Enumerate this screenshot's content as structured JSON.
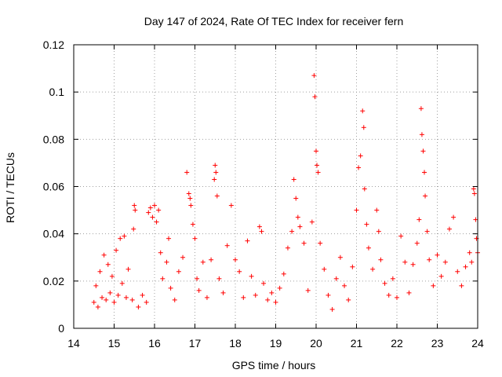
{
  "chart_data": {
    "type": "scatter",
    "title": "Day 147 of 2024, Rate Of TEC Index for receiver fern",
    "xlabel": "GPS time / hours",
    "ylabel": "ROTI / TECUs",
    "xlim": [
      14,
      24
    ],
    "ylim": [
      0,
      0.12
    ],
    "xticks": [
      14,
      15,
      16,
      17,
      18,
      19,
      20,
      21,
      22,
      23,
      24
    ],
    "yticks": [
      0,
      0.02,
      0.04,
      0.06,
      0.08,
      0.1,
      0.12
    ],
    "ytick_labels": [
      "0",
      "0.02",
      "0.04",
      "0.06",
      "0.08",
      "0.1",
      "0.12"
    ],
    "grid": true,
    "marker": "+",
    "color": "#ff0000",
    "series": [
      {
        "name": "ROTI",
        "points": [
          [
            14.5,
            0.011
          ],
          [
            14.55,
            0.018
          ],
          [
            14.6,
            0.009
          ],
          [
            14.65,
            0.024
          ],
          [
            14.7,
            0.013
          ],
          [
            14.75,
            0.031
          ],
          [
            14.8,
            0.012
          ],
          [
            14.85,
            0.027
          ],
          [
            14.9,
            0.015
          ],
          [
            14.95,
            0.022
          ],
          [
            15.0,
            0.011
          ],
          [
            15.05,
            0.033
          ],
          [
            15.1,
            0.014
          ],
          [
            15.15,
            0.038
          ],
          [
            15.2,
            0.019
          ],
          [
            15.25,
            0.039
          ],
          [
            15.3,
            0.013
          ],
          [
            15.35,
            0.025
          ],
          [
            15.45,
            0.012
          ],
          [
            15.5,
            0.052
          ],
          [
            15.52,
            0.05
          ],
          [
            15.48,
            0.042
          ],
          [
            15.6,
            0.009
          ],
          [
            15.7,
            0.014
          ],
          [
            15.8,
            0.011
          ],
          [
            15.85,
            0.049
          ],
          [
            15.9,
            0.051
          ],
          [
            15.95,
            0.047
          ],
          [
            16.0,
            0.052
          ],
          [
            16.05,
            0.045
          ],
          [
            16.1,
            0.05
          ],
          [
            16.15,
            0.032
          ],
          [
            16.2,
            0.021
          ],
          [
            16.3,
            0.028
          ],
          [
            16.35,
            0.038
          ],
          [
            16.4,
            0.017
          ],
          [
            16.5,
            0.012
          ],
          [
            16.6,
            0.024
          ],
          [
            16.7,
            0.03
          ],
          [
            16.8,
            0.066
          ],
          [
            16.85,
            0.057
          ],
          [
            16.88,
            0.055
          ],
          [
            16.9,
            0.052
          ],
          [
            16.95,
            0.044
          ],
          [
            17.0,
            0.038
          ],
          [
            17.05,
            0.021
          ],
          [
            17.1,
            0.016
          ],
          [
            17.2,
            0.028
          ],
          [
            17.3,
            0.013
          ],
          [
            17.4,
            0.029
          ],
          [
            17.5,
            0.069
          ],
          [
            17.52,
            0.066
          ],
          [
            17.48,
            0.063
          ],
          [
            17.55,
            0.056
          ],
          [
            17.6,
            0.021
          ],
          [
            17.7,
            0.015
          ],
          [
            17.8,
            0.035
          ],
          [
            17.9,
            0.052
          ],
          [
            18.0,
            0.029
          ],
          [
            18.1,
            0.024
          ],
          [
            18.2,
            0.013
          ],
          [
            18.3,
            0.037
          ],
          [
            18.4,
            0.022
          ],
          [
            18.5,
            0.014
          ],
          [
            18.6,
            0.043
          ],
          [
            18.65,
            0.041
          ],
          [
            18.7,
            0.019
          ],
          [
            18.8,
            0.012
          ],
          [
            18.9,
            0.015
          ],
          [
            19.0,
            0.011
          ],
          [
            19.1,
            0.017
          ],
          [
            19.2,
            0.023
          ],
          [
            19.3,
            0.034
          ],
          [
            19.4,
            0.041
          ],
          [
            19.45,
            0.063
          ],
          [
            19.5,
            0.055
          ],
          [
            19.55,
            0.047
          ],
          [
            19.6,
            0.043
          ],
          [
            19.7,
            0.036
          ],
          [
            19.8,
            0.016
          ],
          [
            19.9,
            0.045
          ],
          [
            19.95,
            0.107
          ],
          [
            19.97,
            0.098
          ],
          [
            20.0,
            0.075
          ],
          [
            20.02,
            0.069
          ],
          [
            20.05,
            0.066
          ],
          [
            20.1,
            0.036
          ],
          [
            20.2,
            0.025
          ],
          [
            20.3,
            0.014
          ],
          [
            20.4,
            0.008
          ],
          [
            20.5,
            0.021
          ],
          [
            20.6,
            0.03
          ],
          [
            20.7,
            0.018
          ],
          [
            20.8,
            0.012
          ],
          [
            20.9,
            0.026
          ],
          [
            21.0,
            0.05
          ],
          [
            21.05,
            0.068
          ],
          [
            21.1,
            0.073
          ],
          [
            21.15,
            0.092
          ],
          [
            21.18,
            0.085
          ],
          [
            21.2,
            0.059
          ],
          [
            21.25,
            0.044
          ],
          [
            21.3,
            0.034
          ],
          [
            21.4,
            0.025
          ],
          [
            21.5,
            0.05
          ],
          [
            21.55,
            0.041
          ],
          [
            21.6,
            0.029
          ],
          [
            21.7,
            0.019
          ],
          [
            21.8,
            0.014
          ],
          [
            21.9,
            0.021
          ],
          [
            22.0,
            0.013
          ],
          [
            22.1,
            0.039
          ],
          [
            22.2,
            0.028
          ],
          [
            22.3,
            0.015
          ],
          [
            22.4,
            0.027
          ],
          [
            22.5,
            0.036
          ],
          [
            22.55,
            0.046
          ],
          [
            22.6,
            0.093
          ],
          [
            22.62,
            0.082
          ],
          [
            22.65,
            0.075
          ],
          [
            22.68,
            0.066
          ],
          [
            22.7,
            0.056
          ],
          [
            22.75,
            0.041
          ],
          [
            22.8,
            0.029
          ],
          [
            22.9,
            0.018
          ],
          [
            23.0,
            0.031
          ],
          [
            23.1,
            0.022
          ],
          [
            23.2,
            0.028
          ],
          [
            23.3,
            0.042
          ],
          [
            23.4,
            0.047
          ],
          [
            23.5,
            0.024
          ],
          [
            23.6,
            0.018
          ],
          [
            23.7,
            0.026
          ],
          [
            23.8,
            0.032
          ],
          [
            23.85,
            0.028
          ],
          [
            23.9,
            0.059
          ],
          [
            23.92,
            0.057
          ],
          [
            23.95,
            0.046
          ],
          [
            23.97,
            0.038
          ],
          [
            24.0,
            0.032
          ]
        ]
      }
    ]
  }
}
